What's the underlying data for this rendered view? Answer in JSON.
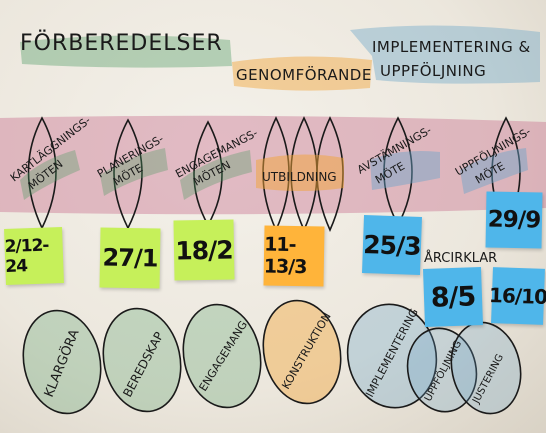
{
  "phases": {
    "preparation": "FÖRBEREDELSER",
    "execution": "GENOMFÖRANDE",
    "implementation_line1": "IMPLEMENTERING &",
    "implementation_line2": "UPPFÖLJNING"
  },
  "meetings": [
    {
      "line1": "KARTLÄGGNINGS-",
      "line2": "MÖTEN"
    },
    {
      "line1": "PLANERINGS-",
      "line2": "MÖTE"
    },
    {
      "line1": "ENGAGEMANGS-",
      "line2": "MÖTEN"
    },
    {
      "line1": "UTBILDNING",
      "line2": ""
    },
    {
      "line1": "AVSTÄMNINGS-",
      "line2": "MÖTE"
    },
    {
      "line1": "UPPFÖLJNINGS-",
      "line2": "MÖTE"
    }
  ],
  "arcirklar_label": "ÅRCIRKLAR",
  "dates": [
    {
      "text": "2/12-24",
      "color": "green"
    },
    {
      "text": "27/1",
      "color": "green"
    },
    {
      "text": "18/2",
      "color": "green"
    },
    {
      "text": "11-13/3",
      "color": "orange"
    },
    {
      "text": "25/3",
      "color": "blue"
    },
    {
      "text": "29/9",
      "color": "blue"
    },
    {
      "text": "8/5",
      "color": "blue"
    },
    {
      "text": "16/10",
      "color": "blue"
    }
  ],
  "outcomes": [
    "KLARGÖRA",
    "BEREDSKAP",
    "ENGAGEMANG",
    "KONSTRUKTION",
    "IMPLEMENTERING",
    "UPPFÖLJNING",
    "JUSTERING"
  ],
  "colors": {
    "pink_band": "#c8708f",
    "green_wash": "#4f9a63",
    "orange_wash": "#f2a437",
    "blue_wash": "#6aa4c9",
    "sticky_green": "#c6f05a",
    "sticky_orange": "#ffb43a",
    "sticky_blue": "#4fb6ea"
  }
}
